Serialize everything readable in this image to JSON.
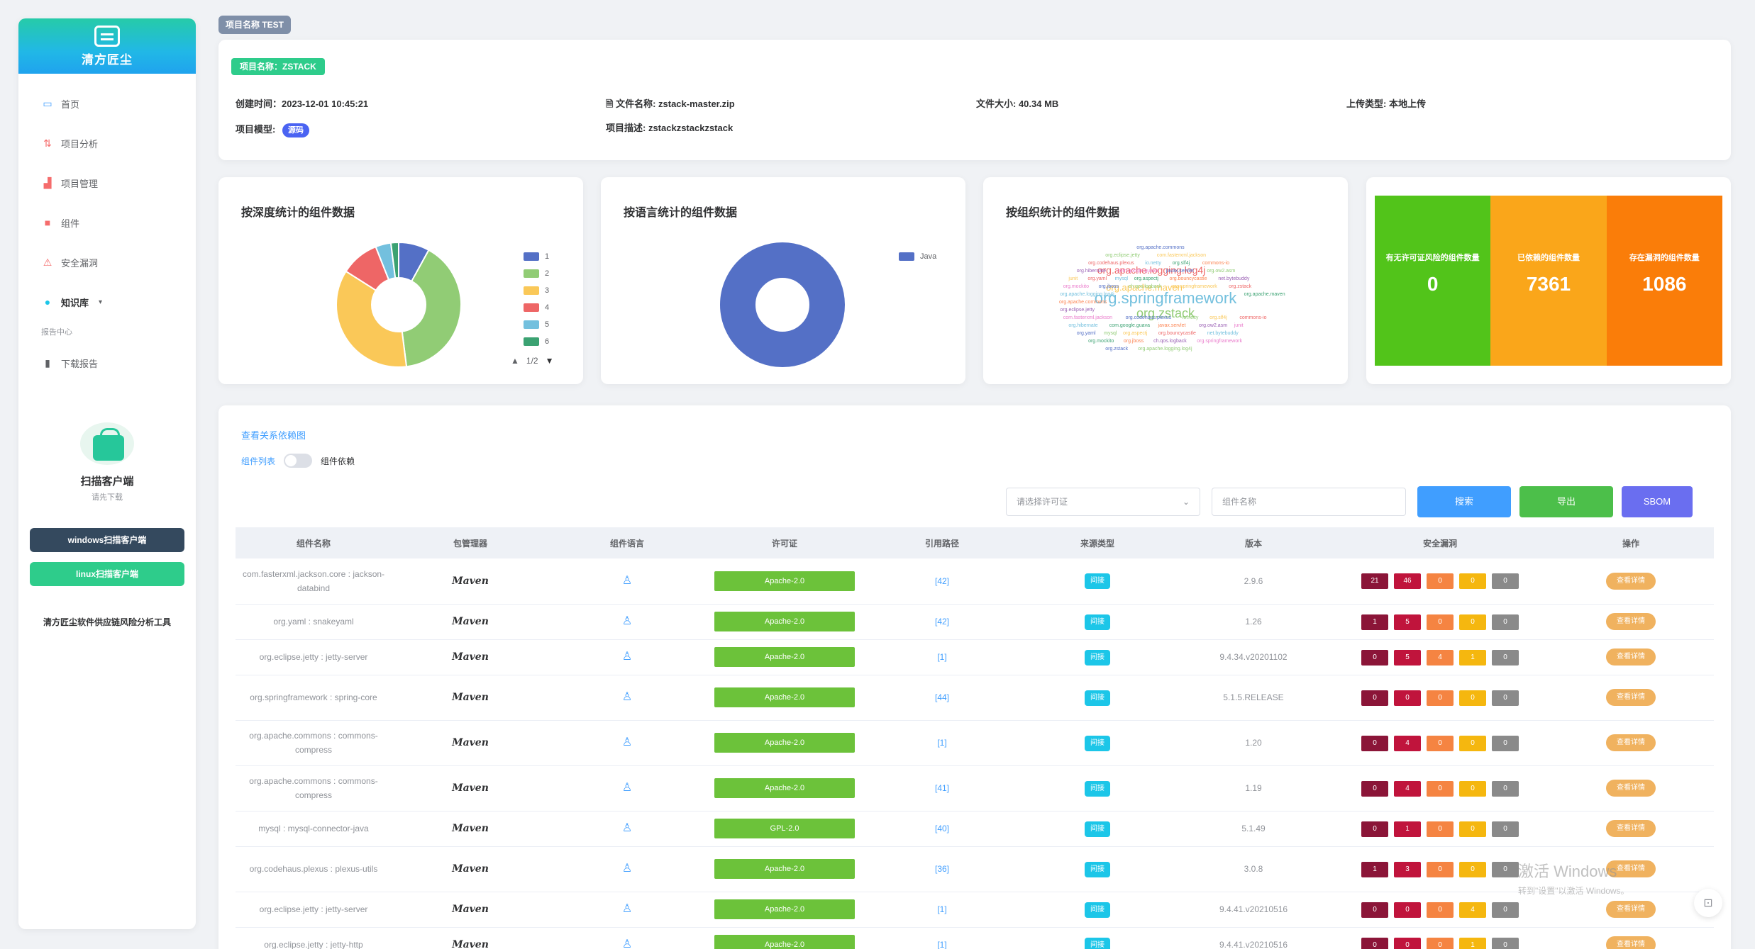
{
  "brand": {
    "name": "清方匠尘"
  },
  "nav": {
    "items": [
      {
        "label": "首页",
        "icon": "monitor-icon",
        "color": "#409eff"
      },
      {
        "label": "项目分析",
        "icon": "chart-icon",
        "color": "#f56c6c"
      },
      {
        "label": "项目管理",
        "icon": "bar-chart-icon",
        "color": "#f56c6c"
      },
      {
        "label": "组件",
        "icon": "box-icon",
        "color": "#f56c6c"
      },
      {
        "label": "安全漏洞",
        "icon": "warning-icon",
        "color": "#f56c6c"
      },
      {
        "label": "知识库",
        "icon": "dot-icon",
        "color": "#1cc6e8"
      }
    ],
    "group_label": "报告中心",
    "report_item": {
      "label": "下载报告",
      "icon": "file-icon"
    }
  },
  "client": {
    "title": "扫描客户端",
    "subtitle": "请先下载",
    "windows_button": "windows扫描客户端",
    "linux_button": "linux扫描客户端",
    "footer": "清方匠尘软件供应链风险分析工具"
  },
  "top_tag": "项目名称 TEST",
  "project": {
    "name_tag": "项目名称：ZSTACK",
    "created": "创建时间：2023-12-01 10:45:21",
    "file_name": "文件名称: zstack-master.zip",
    "file_size": "文件大小: 40.34 MB",
    "upload_type": "上传类型: 本地上传",
    "mode_label": "项目模型:",
    "mode_badge": "源码",
    "desc": "项目描述: zstackzstackzstack"
  },
  "charts": {
    "depth_title": "按深度统计的组件数据",
    "language_title": "按语言统计的组件数据",
    "vendor_title": "按组织统计的组件数据",
    "pager": "1/2"
  },
  "chart_data": [
    {
      "type": "pie",
      "title": "按深度统计的组件数据",
      "categories": [
        "1",
        "2",
        "3",
        "4",
        "5",
        "6"
      ],
      "values": [
        8,
        40,
        36,
        10,
        4,
        2
      ],
      "colors": [
        "#5470c6",
        "#91cc75",
        "#fac858",
        "#ee6666",
        "#73c0de",
        "#3ba272"
      ]
    },
    {
      "type": "pie",
      "title": "按语言统计的组件数据",
      "categories": [
        "Java"
      ],
      "values": [
        100
      ],
      "colors": [
        "#5470c6"
      ]
    }
  ],
  "wordcloud": {
    "words": [
      "org.springframework",
      "org.zstack",
      "org.apache.logging.log4j",
      "org.apache.maven",
      "org.apache.commons",
      "org.eclipse.jetty",
      "com.fasterxml.jackson",
      "org.codehaus.plexus",
      "io.netty",
      "org.slf4j",
      "commons-io",
      "org.hibernate",
      "com.google.guava",
      "javax.servlet",
      "org.ow2.asm",
      "junit",
      "org.yaml",
      "mysql",
      "org.aspectj",
      "org.bouncycastle",
      "net.bytebuddy",
      "org.mockito",
      "org.jboss",
      "ch.qos.logback"
    ]
  },
  "stats": [
    {
      "label": "有无许可证风险的组件数量",
      "value": "0",
      "color": "#52c41a"
    },
    {
      "label": "已依赖的组件数量",
      "value": "7361",
      "color": "#faa61a"
    },
    {
      "label": "存在漏洞的组件数量",
      "value": "1086",
      "color": "#fa7d09"
    }
  ],
  "table_section": {
    "link": "查看关系依赖图",
    "toggle_left": "组件列表",
    "toggle_right": "组件依赖",
    "select_placeholder": "请选择许可证",
    "search_placeholder": "组件名称",
    "search_button": "搜索",
    "export_button": "导出",
    "sbom_button": "SBOM",
    "columns": [
      "组件名称",
      "包管理器",
      "组件语言",
      "许可证",
      "引用路径",
      "来源类型",
      "版本",
      "安全漏洞",
      "操作"
    ],
    "rows": [
      {
        "name": "com.fasterxml.jackson.core : jackson-databind",
        "manager": "Maven",
        "license": "Apache-2.0",
        "cite": "[42]",
        "source": "间接",
        "version": "2.9.6",
        "sev": [
          "21",
          "46",
          "0",
          "0",
          "0"
        ],
        "op": "查看详情",
        "tall": true
      },
      {
        "name": "org.yaml : snakeyaml",
        "manager": "Maven",
        "license": "Apache-2.0",
        "cite": "[42]",
        "source": "间接",
        "version": "1.26",
        "sev": [
          "1",
          "5",
          "0",
          "0",
          "0"
        ],
        "op": "查看详情",
        "tall": false
      },
      {
        "name": "org.eclipse.jetty : jetty-server",
        "manager": "Maven",
        "license": "Apache-2.0",
        "cite": "[1]",
        "source": "间接",
        "version": "9.4.34.v20201102",
        "sev": [
          "0",
          "5",
          "4",
          "1",
          "0"
        ],
        "op": "查看详情",
        "tall": false
      },
      {
        "name": "org.springframework : spring-core",
        "manager": "Maven",
        "license": "Apache-2.0",
        "cite": "[44]",
        "source": "间接",
        "version": "5.1.5.RELEASE",
        "sev": [
          "0",
          "0",
          "0",
          "0",
          "0"
        ],
        "op": "查看详情",
        "tall": true
      },
      {
        "name": "org.apache.commons : commons-compress",
        "manager": "Maven",
        "license": "Apache-2.0",
        "cite": "[1]",
        "source": "间接",
        "version": "1.20",
        "sev": [
          "0",
          "4",
          "0",
          "0",
          "0"
        ],
        "op": "查看详情",
        "tall": true
      },
      {
        "name": "org.apache.commons : commons-compress",
        "manager": "Maven",
        "license": "Apache-2.0",
        "cite": "[41]",
        "source": "间接",
        "version": "1.19",
        "sev": [
          "0",
          "4",
          "0",
          "0",
          "0"
        ],
        "op": "查看详情",
        "tall": true
      },
      {
        "name": "mysql : mysql-connector-java",
        "manager": "Maven",
        "license": "GPL-2.0",
        "cite": "[40]",
        "source": "间接",
        "version": "5.1.49",
        "sev": [
          "0",
          "1",
          "0",
          "0",
          "0"
        ],
        "op": "查看详情",
        "tall": false
      },
      {
        "name": "org.codehaus.plexus : plexus-utils",
        "manager": "Maven",
        "license": "Apache-2.0",
        "cite": "[36]",
        "source": "间接",
        "version": "3.0.8",
        "sev": [
          "1",
          "3",
          "0",
          "0",
          "0"
        ],
        "op": "查看详情",
        "tall": true
      },
      {
        "name": "org.eclipse.jetty : jetty-server",
        "manager": "Maven",
        "license": "Apache-2.0",
        "cite": "[1]",
        "source": "间接",
        "version": "9.4.41.v20210516",
        "sev": [
          "0",
          "0",
          "0",
          "4",
          "0"
        ],
        "op": "查看详情",
        "tall": false
      },
      {
        "name": "org.eclipse.jetty : jetty-http",
        "manager": "Maven",
        "license": "Apache-2.0",
        "cite": "[1]",
        "source": "间接",
        "version": "9.4.41.v20210516",
        "sev": [
          "0",
          "0",
          "0",
          "1",
          "0"
        ],
        "op": "查看详情",
        "tall": false
      }
    ]
  },
  "watermark": {
    "line1": "激活 Windows",
    "line2": "转到\"设置\"以激活 Windows。"
  }
}
